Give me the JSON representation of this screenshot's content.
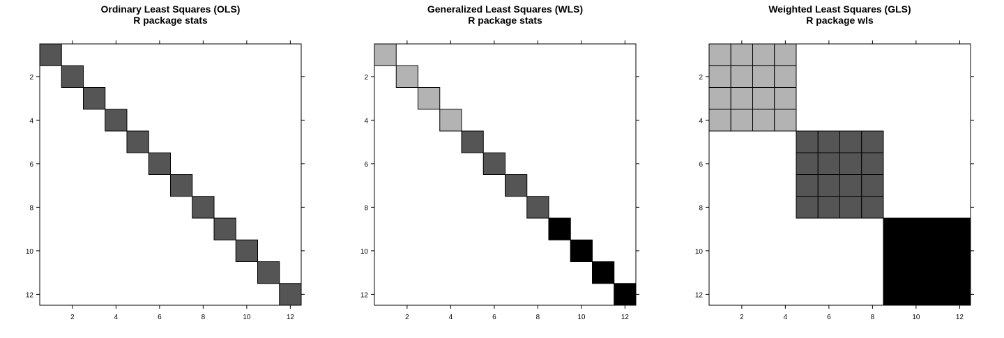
{
  "chart_data": [
    {
      "type": "heatmap",
      "title": "Ordinary Least Squares (OLS)",
      "subtitle": "R package stats",
      "xlim": [
        0.5,
        12.5
      ],
      "ylim": [
        0.5,
        12.5
      ],
      "y_reversed": true,
      "x_ticks": [
        2,
        4,
        6,
        8,
        10,
        12
      ],
      "y_ticks": [
        2,
        4,
        6,
        8,
        10,
        12
      ],
      "grid": false,
      "color_levels": {
        "dark_gray": "#555555",
        "light_gray": "#b3b3b3",
        "black": "#000000",
        "empty": "#ffffff"
      },
      "cells": [
        {
          "row": 1,
          "col": 1,
          "level": "dark_gray"
        },
        {
          "row": 2,
          "col": 2,
          "level": "dark_gray"
        },
        {
          "row": 3,
          "col": 3,
          "level": "dark_gray"
        },
        {
          "row": 4,
          "col": 4,
          "level": "dark_gray"
        },
        {
          "row": 5,
          "col": 5,
          "level": "dark_gray"
        },
        {
          "row": 6,
          "col": 6,
          "level": "dark_gray"
        },
        {
          "row": 7,
          "col": 7,
          "level": "dark_gray"
        },
        {
          "row": 8,
          "col": 8,
          "level": "dark_gray"
        },
        {
          "row": 9,
          "col": 9,
          "level": "dark_gray"
        },
        {
          "row": 10,
          "col": 10,
          "level": "dark_gray"
        },
        {
          "row": 11,
          "col": 11,
          "level": "dark_gray"
        },
        {
          "row": 12,
          "col": 12,
          "level": "dark_gray"
        }
      ]
    },
    {
      "type": "heatmap",
      "title": "Generalized Least Squares (WLS)",
      "subtitle": "R package stats",
      "xlim": [
        0.5,
        12.5
      ],
      "ylim": [
        0.5,
        12.5
      ],
      "y_reversed": true,
      "x_ticks": [
        2,
        4,
        6,
        8,
        10,
        12
      ],
      "y_ticks": [
        2,
        4,
        6,
        8,
        10,
        12
      ],
      "grid": false,
      "color_levels": {
        "dark_gray": "#555555",
        "light_gray": "#b3b3b3",
        "black": "#000000",
        "empty": "#ffffff"
      },
      "cells": [
        {
          "row": 1,
          "col": 1,
          "level": "light_gray"
        },
        {
          "row": 2,
          "col": 2,
          "level": "light_gray"
        },
        {
          "row": 3,
          "col": 3,
          "level": "light_gray"
        },
        {
          "row": 4,
          "col": 4,
          "level": "light_gray"
        },
        {
          "row": 5,
          "col": 5,
          "level": "dark_gray"
        },
        {
          "row": 6,
          "col": 6,
          "level": "dark_gray"
        },
        {
          "row": 7,
          "col": 7,
          "level": "dark_gray"
        },
        {
          "row": 8,
          "col": 8,
          "level": "dark_gray"
        },
        {
          "row": 9,
          "col": 9,
          "level": "black"
        },
        {
          "row": 10,
          "col": 10,
          "level": "black"
        },
        {
          "row": 11,
          "col": 11,
          "level": "black"
        },
        {
          "row": 12,
          "col": 12,
          "level": "black"
        }
      ]
    },
    {
      "type": "heatmap",
      "title": "Weighted Least Squares (GLS)",
      "subtitle": "R package wls",
      "xlim": [
        0.5,
        12.5
      ],
      "ylim": [
        0.5,
        12.5
      ],
      "y_reversed": true,
      "x_ticks": [
        2,
        4,
        6,
        8,
        10,
        12
      ],
      "y_ticks": [
        2,
        4,
        6,
        8,
        10,
        12
      ],
      "grid": false,
      "color_levels": {
        "dark_gray": "#555555",
        "light_gray": "#b3b3b3",
        "black": "#000000",
        "empty": "#ffffff"
      },
      "cells": [
        {
          "row": 1,
          "col": 1,
          "level": "light_gray"
        },
        {
          "row": 1,
          "col": 2,
          "level": "light_gray"
        },
        {
          "row": 1,
          "col": 3,
          "level": "light_gray"
        },
        {
          "row": 1,
          "col": 4,
          "level": "light_gray"
        },
        {
          "row": 2,
          "col": 1,
          "level": "light_gray"
        },
        {
          "row": 2,
          "col": 2,
          "level": "light_gray"
        },
        {
          "row": 2,
          "col": 3,
          "level": "light_gray"
        },
        {
          "row": 2,
          "col": 4,
          "level": "light_gray"
        },
        {
          "row": 3,
          "col": 1,
          "level": "light_gray"
        },
        {
          "row": 3,
          "col": 2,
          "level": "light_gray"
        },
        {
          "row": 3,
          "col": 3,
          "level": "light_gray"
        },
        {
          "row": 3,
          "col": 4,
          "level": "light_gray"
        },
        {
          "row": 4,
          "col": 1,
          "level": "light_gray"
        },
        {
          "row": 4,
          "col": 2,
          "level": "light_gray"
        },
        {
          "row": 4,
          "col": 3,
          "level": "light_gray"
        },
        {
          "row": 4,
          "col": 4,
          "level": "light_gray"
        },
        {
          "row": 5,
          "col": 5,
          "level": "dark_gray"
        },
        {
          "row": 5,
          "col": 6,
          "level": "dark_gray"
        },
        {
          "row": 5,
          "col": 7,
          "level": "dark_gray"
        },
        {
          "row": 5,
          "col": 8,
          "level": "dark_gray"
        },
        {
          "row": 6,
          "col": 5,
          "level": "dark_gray"
        },
        {
          "row": 6,
          "col": 6,
          "level": "dark_gray"
        },
        {
          "row": 6,
          "col": 7,
          "level": "dark_gray"
        },
        {
          "row": 6,
          "col": 8,
          "level": "dark_gray"
        },
        {
          "row": 7,
          "col": 5,
          "level": "dark_gray"
        },
        {
          "row": 7,
          "col": 6,
          "level": "dark_gray"
        },
        {
          "row": 7,
          "col": 7,
          "level": "dark_gray"
        },
        {
          "row": 7,
          "col": 8,
          "level": "dark_gray"
        },
        {
          "row": 8,
          "col": 5,
          "level": "dark_gray"
        },
        {
          "row": 8,
          "col": 6,
          "level": "dark_gray"
        },
        {
          "row": 8,
          "col": 7,
          "level": "dark_gray"
        },
        {
          "row": 8,
          "col": 8,
          "level": "dark_gray"
        }
      ],
      "blocks": [
        {
          "row_start": 9,
          "row_end": 12,
          "col_start": 9,
          "col_end": 12,
          "level": "black"
        }
      ]
    }
  ]
}
